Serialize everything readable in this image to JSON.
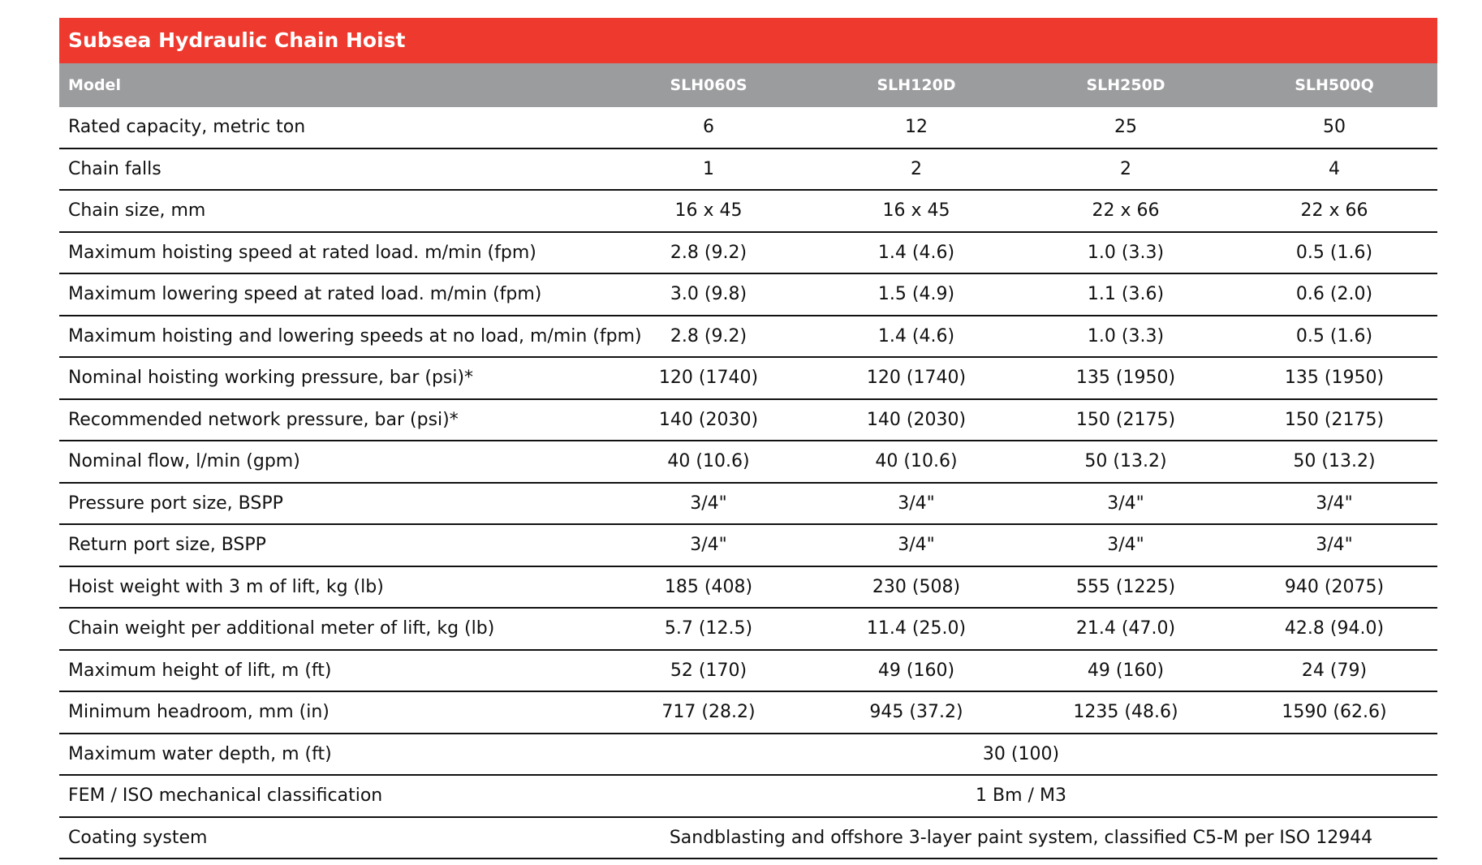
{
  "title": "Subsea Hydraulic Chain Hoist",
  "table": {
    "header": [
      "Model",
      "SLH060S",
      "SLH120D",
      "SLH250D",
      "SLH500Q"
    ],
    "rows": [
      [
        "Rated capacity, metric ton",
        "6",
        "12",
        "25",
        "50"
      ],
      [
        "Chain falls",
        "1",
        "2",
        "2",
        "4"
      ],
      [
        "Chain size, mm",
        "16 x 45",
        "16 x 45",
        "22 x 66",
        "22 x 66"
      ],
      [
        "Maximum hoisting speed at rated load. m/min (fpm)",
        "2.8 (9.2)",
        "1.4 (4.6)",
        "1.0 (3.3)",
        "0.5 (1.6)"
      ],
      [
        "Maximum lowering speed at rated load. m/min (fpm)",
        "3.0 (9.8)",
        "1.5 (4.9)",
        "1.1 (3.6)",
        "0.6 (2.0)"
      ],
      [
        "Maximum hoisting and lowering speeds at no load, m/min (fpm)",
        "2.8 (9.2)",
        "1.4 (4.6)",
        "1.0 (3.3)",
        "0.5 (1.6)"
      ],
      [
        "Nominal hoisting working pressure, bar (psi)*",
        "120 (1740)",
        "120 (1740)",
        "135 (1950)",
        "135 (1950)"
      ],
      [
        "Recommended network pressure, bar (psi)*",
        "140 (2030)",
        "140 (2030)",
        "150 (2175)",
        "150 (2175)"
      ],
      [
        "Nominal flow, l/min (gpm)",
        "40 (10.6)",
        "40 (10.6)",
        "50 (13.2)",
        "50 (13.2)"
      ],
      [
        "Pressure port size, BSPP",
        "3/4\"",
        "3/4\"",
        "3/4\"",
        "3/4\""
      ],
      [
        "Return port size, BSPP",
        "3/4\"",
        "3/4\"",
        "3/4\"",
        "3/4\""
      ],
      [
        "Hoist weight with 3 m of lift, kg (lb)",
        "185 (408)",
        "230 (508)",
        "555 (1225)",
        "940 (2075)"
      ],
      [
        "Chain weight per additional meter of lift, kg (lb)",
        "5.7 (12.5)",
        "11.4 (25.0)",
        "21.4 (47.0)",
        "42.8 (94.0)"
      ],
      [
        "Maximum height of lift, m (ft)",
        "52 (170)",
        "49 (160)",
        "49 (160)",
        "24 (79)"
      ],
      [
        "Minimum headroom, mm (in)",
        "717 (28.2)",
        "945 (37.2)",
        "1235 (48.6)",
        "1590 (62.6)"
      ],
      [
        "Maximum water depth, m (ft)",
        "30 (100)"
      ],
      [
        "FEM / ISO mechanical classification",
        "1 Bm / M3"
      ],
      [
        "Coating system",
        "Sandblasting and offshore 3-layer paint system, classified C5-M per ISO 12944"
      ]
    ]
  }
}
